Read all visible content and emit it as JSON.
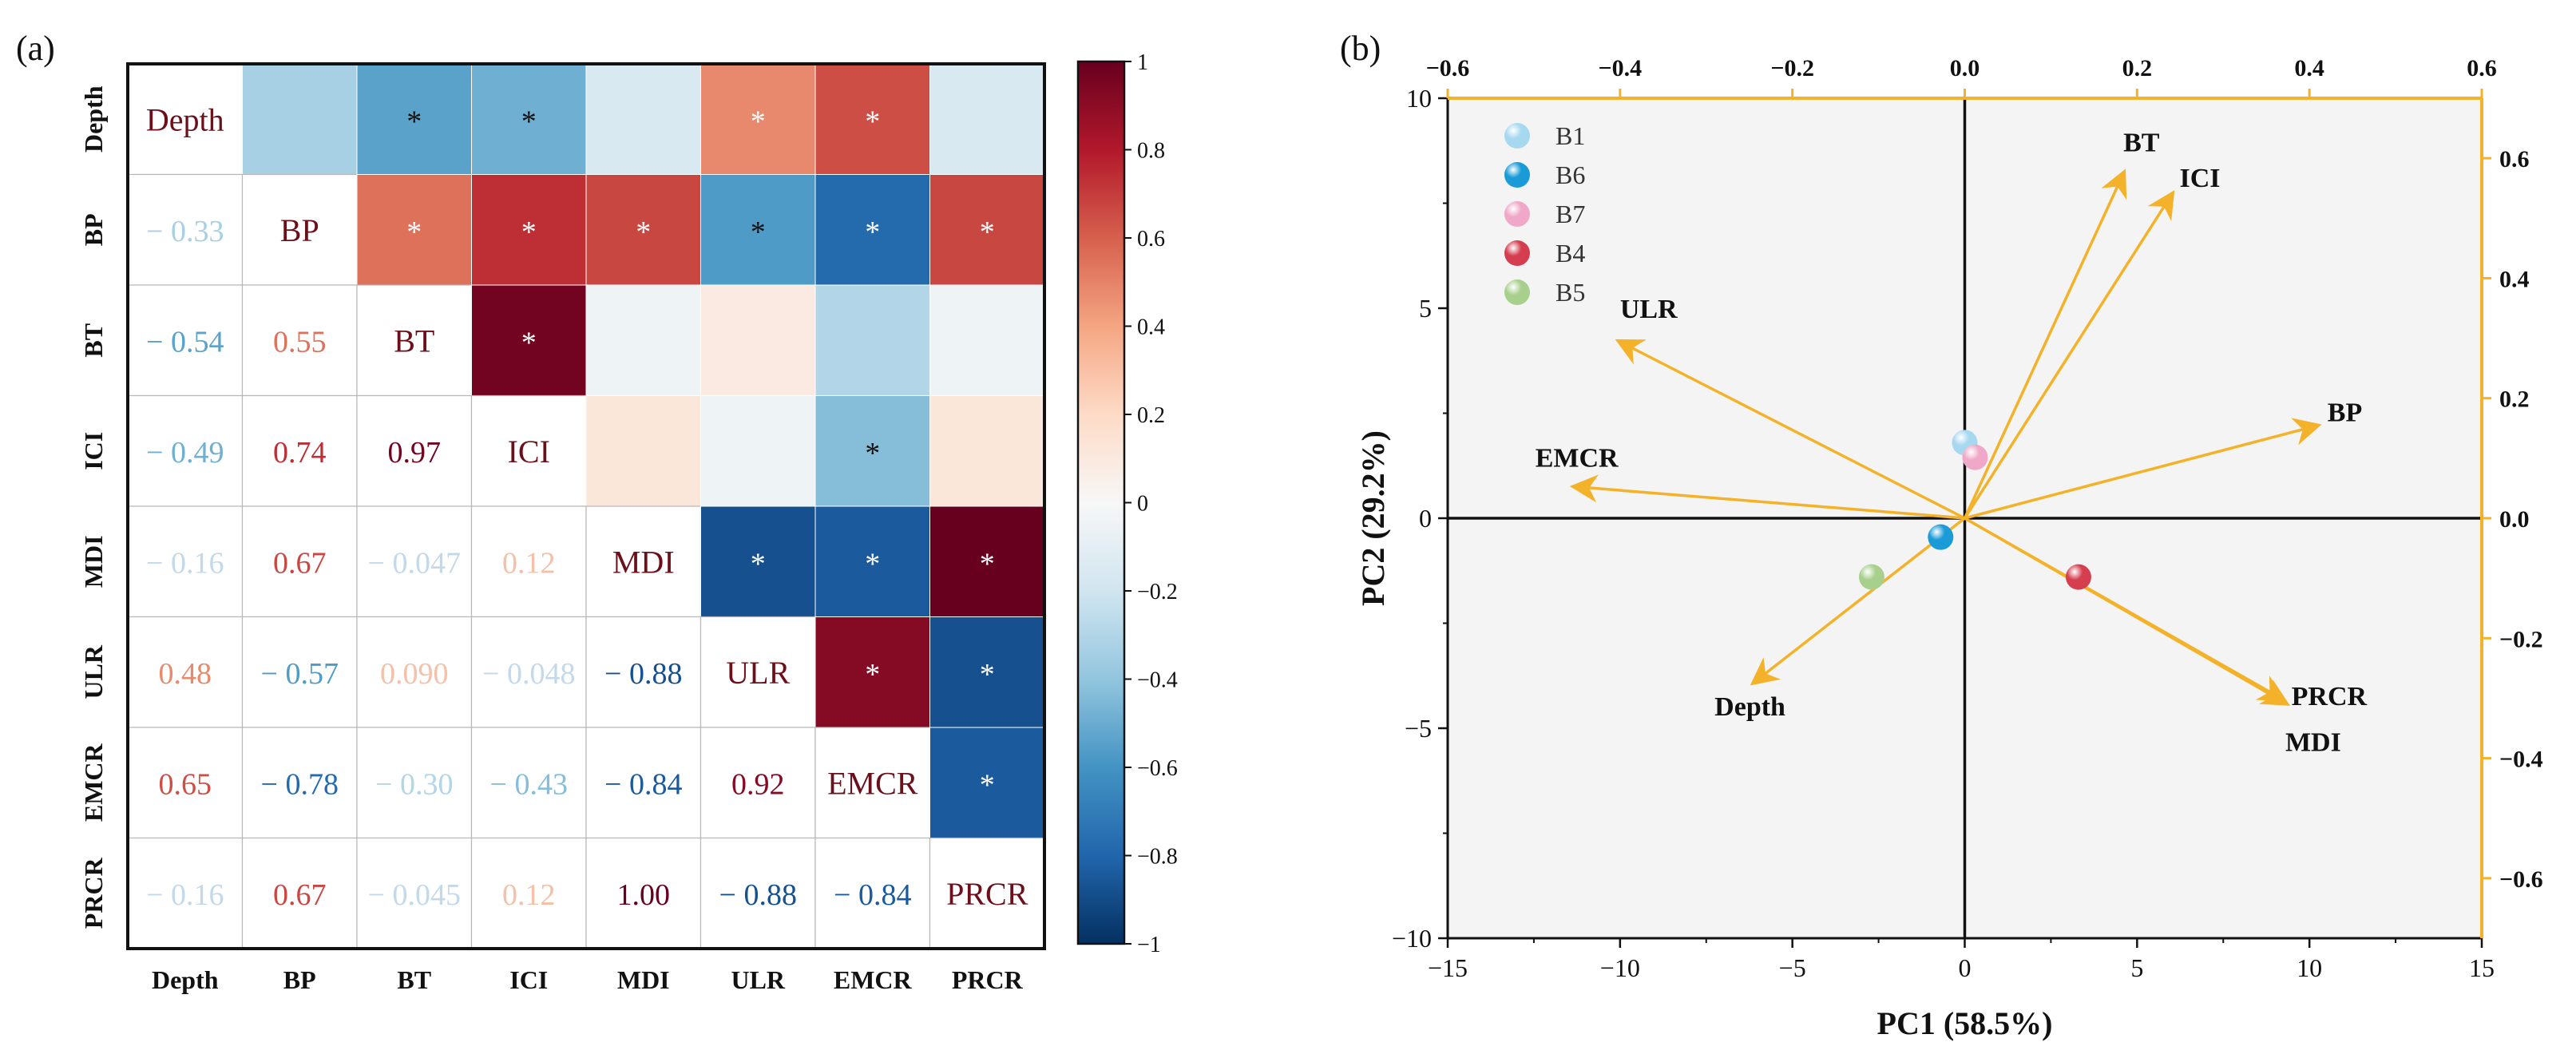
{
  "chart_data": [
    {
      "panel_label": "(a)",
      "type": "heatmap",
      "variables": [
        "Depth",
        "BP",
        "BT",
        "ICI",
        "MDI",
        "ULR",
        "EMCR",
        "PRCR"
      ],
      "lower_triangle_labels": [
        [],
        [
          "− 0.33"
        ],
        [
          "− 0.54",
          "0.55"
        ],
        [
          "− 0.49",
          "0.74",
          "0.97"
        ],
        [
          "− 0.16",
          "0.67",
          "− 0.047",
          "0.12"
        ],
        [
          "0.48",
          "− 0.57",
          "0.090",
          "− 0.048",
          "− 0.88"
        ],
        [
          "0.65",
          "− 0.78",
          "− 0.30",
          "− 0.43",
          "− 0.84",
          "0.92"
        ],
        [
          "− 0.16",
          "0.67",
          "− 0.045",
          "0.12",
          "1.00",
          "− 0.88",
          "− 0.84"
        ]
      ],
      "upper_triangle_values": [
        [
          null,
          -0.33,
          -0.54,
          -0.49,
          -0.16,
          0.48,
          0.65,
          -0.16
        ],
        [
          null,
          null,
          0.55,
          0.74,
          0.67,
          -0.57,
          -0.78,
          0.67
        ],
        [
          null,
          null,
          null,
          0.97,
          -0.047,
          0.09,
          -0.3,
          -0.045
        ],
        [
          null,
          null,
          null,
          null,
          0.12,
          -0.048,
          -0.43,
          0.12
        ],
        [
          null,
          null,
          null,
          null,
          null,
          -0.88,
          -0.84,
          1.0
        ],
        [
          null,
          null,
          null,
          null,
          null,
          null,
          0.92,
          -0.88
        ],
        [
          null,
          null,
          null,
          null,
          null,
          null,
          null,
          -0.84
        ],
        [
          null,
          null,
          null,
          null,
          null,
          null,
          null,
          null
        ]
      ],
      "significance_mark": "*",
      "significant_pairs": [
        [
          0,
          2
        ],
        [
          0,
          3
        ],
        [
          0,
          5
        ],
        [
          0,
          6
        ],
        [
          1,
          2
        ],
        [
          1,
          3
        ],
        [
          1,
          4
        ],
        [
          1,
          5
        ],
        [
          1,
          6
        ],
        [
          1,
          7
        ],
        [
          2,
          3
        ],
        [
          3,
          6
        ],
        [
          4,
          5
        ],
        [
          4,
          6
        ],
        [
          4,
          7
        ],
        [
          5,
          6
        ],
        [
          5,
          7
        ],
        [
          6,
          7
        ]
      ],
      "colorbar": {
        "range": [
          -1,
          1
        ],
        "ticks": [
          "1",
          "0.8",
          "0.6",
          "0.4",
          "0.2",
          "0",
          "−0.2",
          "−0.4",
          "−0.6",
          "−0.8",
          "−1"
        ],
        "colors": [
          "#053061",
          "#2166ac",
          "#4393c3",
          "#92c5de",
          "#d1e5f0",
          "#f7f7f7",
          "#fddbc7",
          "#f4a582",
          "#d6604d",
          "#b2182b",
          "#67001f"
        ]
      }
    },
    {
      "panel_label": "(b)",
      "type": "scatter",
      "subtype": "biplot",
      "xlabel": "PC1 (58.5%)",
      "ylabel": "PC2 (29.2%)",
      "xlim": [
        -15,
        15
      ],
      "ylim": [
        -10,
        10
      ],
      "xticks": [
        "−15",
        "−10",
        "−5",
        "0",
        "5",
        "10",
        "15"
      ],
      "yticks": [
        "10",
        "5",
        "0",
        "−5",
        "−10"
      ],
      "top_axis": {
        "range": [
          -0.6,
          0.6
        ],
        "ticks": [
          "−0.6",
          "−0.4",
          "−0.2",
          "0.0",
          "0.2",
          "0.4",
          "0.6"
        ]
      },
      "right_axis": {
        "range": [
          -0.7,
          0.7
        ],
        "ticks": [
          "0.6",
          "0.4",
          "0.2",
          "0.0",
          "−0.2",
          "−0.4",
          "−0.6"
        ]
      },
      "points": [
        {
          "name": "B1",
          "x": 0.0,
          "y": 1.8,
          "color": "#a6d8f0"
        },
        {
          "name": "B6",
          "x": -0.7,
          "y": -0.45,
          "color": "#1a9ad6"
        },
        {
          "name": "B7",
          "x": 0.3,
          "y": 1.45,
          "color": "#f0a8c8"
        },
        {
          "name": "B4",
          "x": 3.3,
          "y": -1.4,
          "color": "#d53e4f"
        },
        {
          "name": "B5",
          "x": -2.7,
          "y": -1.4,
          "color": "#a8d08d"
        }
      ],
      "loadings": [
        {
          "name": "BT",
          "x": 4.6,
          "y": 8.2
        },
        {
          "name": "ICI",
          "x": 6.0,
          "y": 7.7
        },
        {
          "name": "ULR",
          "x": -10.0,
          "y": 4.2
        },
        {
          "name": "BP",
          "x": 10.2,
          "y": 2.2
        },
        {
          "name": "EMCR",
          "x": -11.3,
          "y": 0.75
        },
        {
          "name": "PRCR",
          "x": 9.2,
          "y": -4.3
        },
        {
          "name": "MDI",
          "x": 9.3,
          "y": -4.4
        },
        {
          "name": "Depth",
          "x": -6.1,
          "y": -3.9
        }
      ],
      "arrow_color": "#f3b229",
      "axis_color": "#f3b229"
    }
  ]
}
